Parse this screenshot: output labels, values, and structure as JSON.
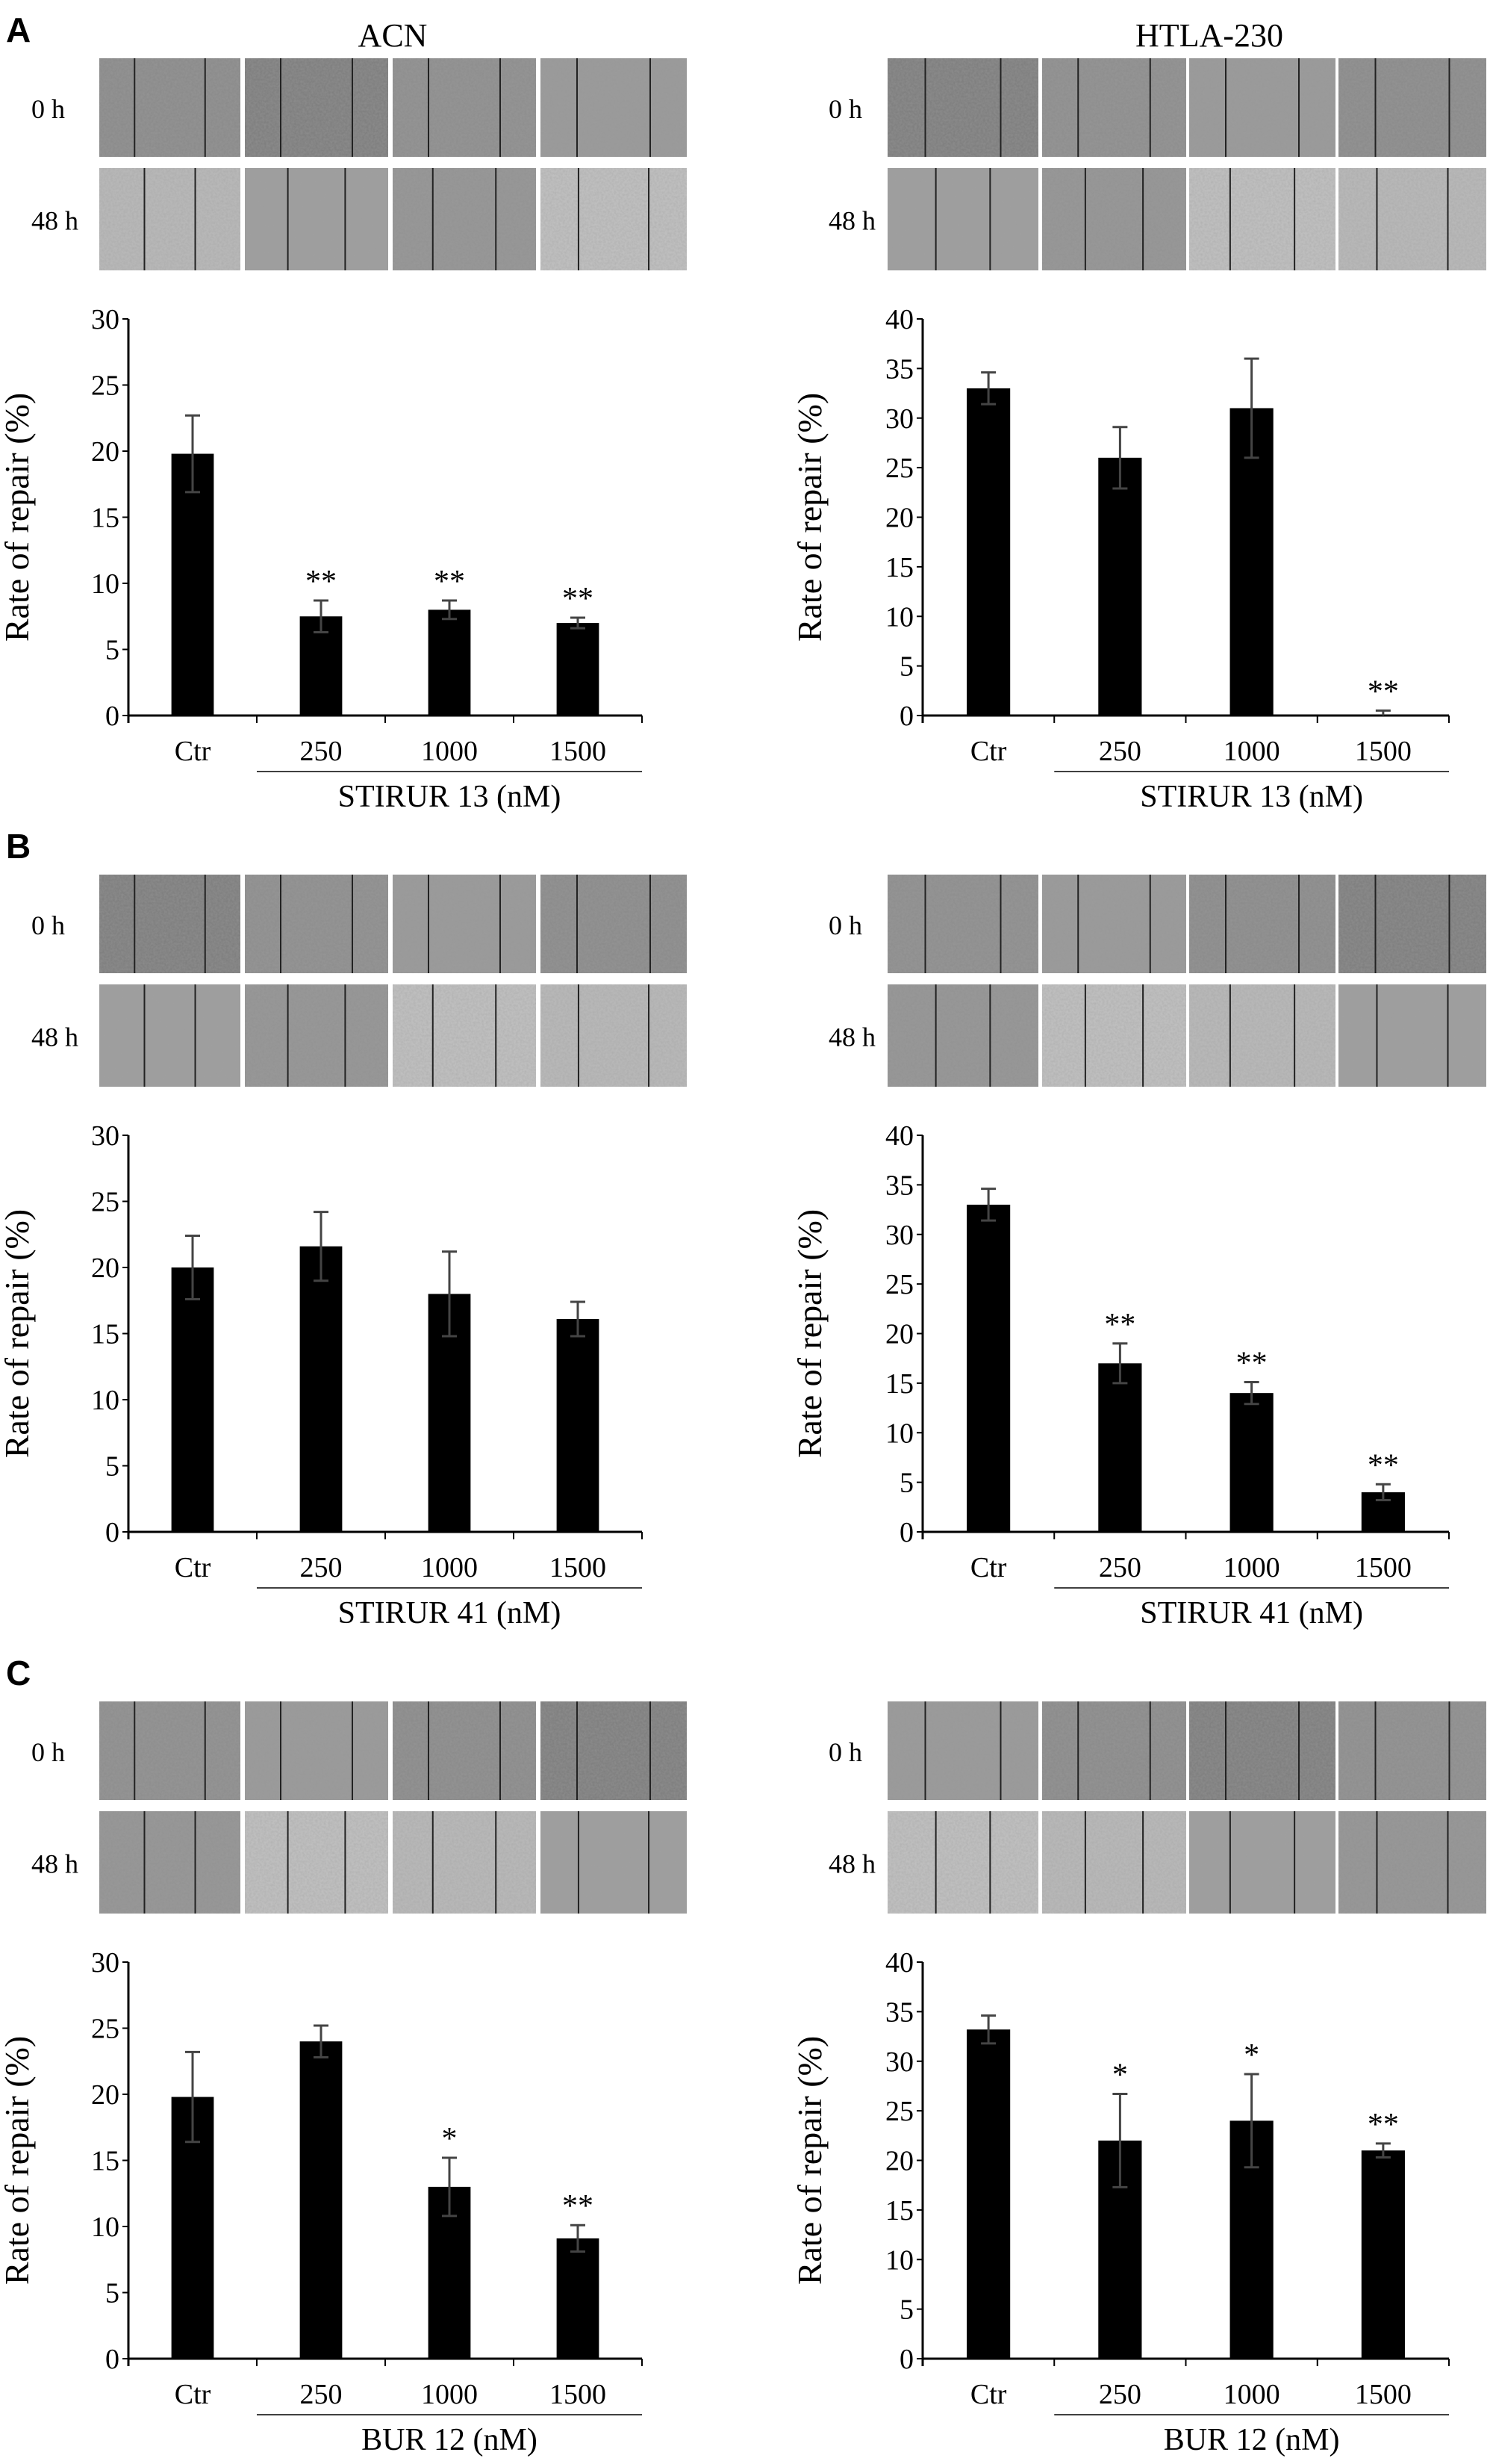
{
  "column_titles": [
    "ACN",
    "HTLA-230"
  ],
  "row_labels": [
    "0 h",
    "48 h"
  ],
  "colors": {
    "bar": "#000000",
    "error_bar": "#444444",
    "micrograph": "#8c8c8c"
  },
  "chart_data": [
    {
      "type": "bar",
      "section": "A",
      "cell_line": "ACN",
      "ylabel": "Rate of repair (%)",
      "group_label": "STIRUR 13 (nM)",
      "categories": [
        "Ctr",
        "250",
        "1000",
        "1500"
      ],
      "values": [
        19.8,
        7.5,
        8.0,
        7.0
      ],
      "errors": [
        2.9,
        1.2,
        0.7,
        0.4
      ],
      "annotations": [
        "",
        "**",
        "**",
        "**"
      ],
      "ylim": [
        0,
        30
      ],
      "yticks": [
        0,
        5,
        10,
        15,
        20,
        25,
        30
      ],
      "grid": false
    },
    {
      "type": "bar",
      "section": "A",
      "cell_line": "HTLA-230",
      "ylabel": "Rate of repair (%)",
      "group_label": "STIRUR 13 (nM)",
      "categories": [
        "Ctr",
        "250",
        "1000",
        "1500"
      ],
      "values": [
        33.0,
        26.0,
        31.0,
        0.0
      ],
      "errors": [
        1.6,
        3.1,
        5.0,
        0.5
      ],
      "annotations": [
        "",
        "",
        "",
        "**"
      ],
      "ylim": [
        0,
        40
      ],
      "yticks": [
        0,
        5,
        10,
        15,
        20,
        25,
        30,
        35,
        40
      ],
      "grid": false
    },
    {
      "type": "bar",
      "section": "B",
      "cell_line": "ACN",
      "ylabel": "Rate of repair (%)",
      "group_label": "STIRUR 41 (nM)",
      "categories": [
        "Ctr",
        "250",
        "1000",
        "1500"
      ],
      "values": [
        20.0,
        21.6,
        18.0,
        16.1
      ],
      "errors": [
        2.4,
        2.6,
        3.2,
        1.3
      ],
      "annotations": [
        "",
        "",
        "",
        ""
      ],
      "ylim": [
        0,
        30
      ],
      "yticks": [
        0,
        5,
        10,
        15,
        20,
        25,
        30
      ],
      "grid": false
    },
    {
      "type": "bar",
      "section": "B",
      "cell_line": "HTLA-230",
      "ylabel": "Rate of repair (%)",
      "group_label": "STIRUR 41 (nM)",
      "categories": [
        "Ctr",
        "250",
        "1000",
        "1500"
      ],
      "values": [
        33.0,
        17.0,
        14.0,
        4.0
      ],
      "errors": [
        1.6,
        2.0,
        1.1,
        0.8
      ],
      "annotations": [
        "",
        "**",
        "**",
        "**"
      ],
      "ylim": [
        0,
        40
      ],
      "yticks": [
        0,
        5,
        10,
        15,
        20,
        25,
        30,
        35,
        40
      ],
      "grid": false
    },
    {
      "type": "bar",
      "section": "C",
      "cell_line": "ACN",
      "ylabel": "Rate of repair (%)",
      "group_label": "BUR 12 (nM)",
      "categories": [
        "Ctr",
        "250",
        "1000",
        "1500"
      ],
      "values": [
        19.8,
        24.0,
        13.0,
        9.1
      ],
      "errors": [
        3.4,
        1.2,
        2.2,
        1.0
      ],
      "annotations": [
        "",
        "",
        "*",
        "**"
      ],
      "ylim": [
        0,
        30
      ],
      "yticks": [
        0,
        5,
        10,
        15,
        20,
        25,
        30
      ],
      "grid": false
    },
    {
      "type": "bar",
      "section": "C",
      "cell_line": "HTLA-230",
      "ylabel": "Rate of repair (%)",
      "group_label": "BUR 12 (nM)",
      "categories": [
        "Ctr",
        "250",
        "1000",
        "1500"
      ],
      "values": [
        33.2,
        22.0,
        24.0,
        21.0
      ],
      "errors": [
        1.4,
        4.7,
        4.7,
        0.7
      ],
      "annotations": [
        "*",
        "*",
        "*",
        "**"
      ],
      "ylim": [
        0,
        40
      ],
      "yticks": [
        0,
        5,
        10,
        15,
        20,
        25,
        30,
        35,
        40
      ],
      "grid": false
    }
  ],
  "sections": [
    "A",
    "B",
    "C"
  ]
}
